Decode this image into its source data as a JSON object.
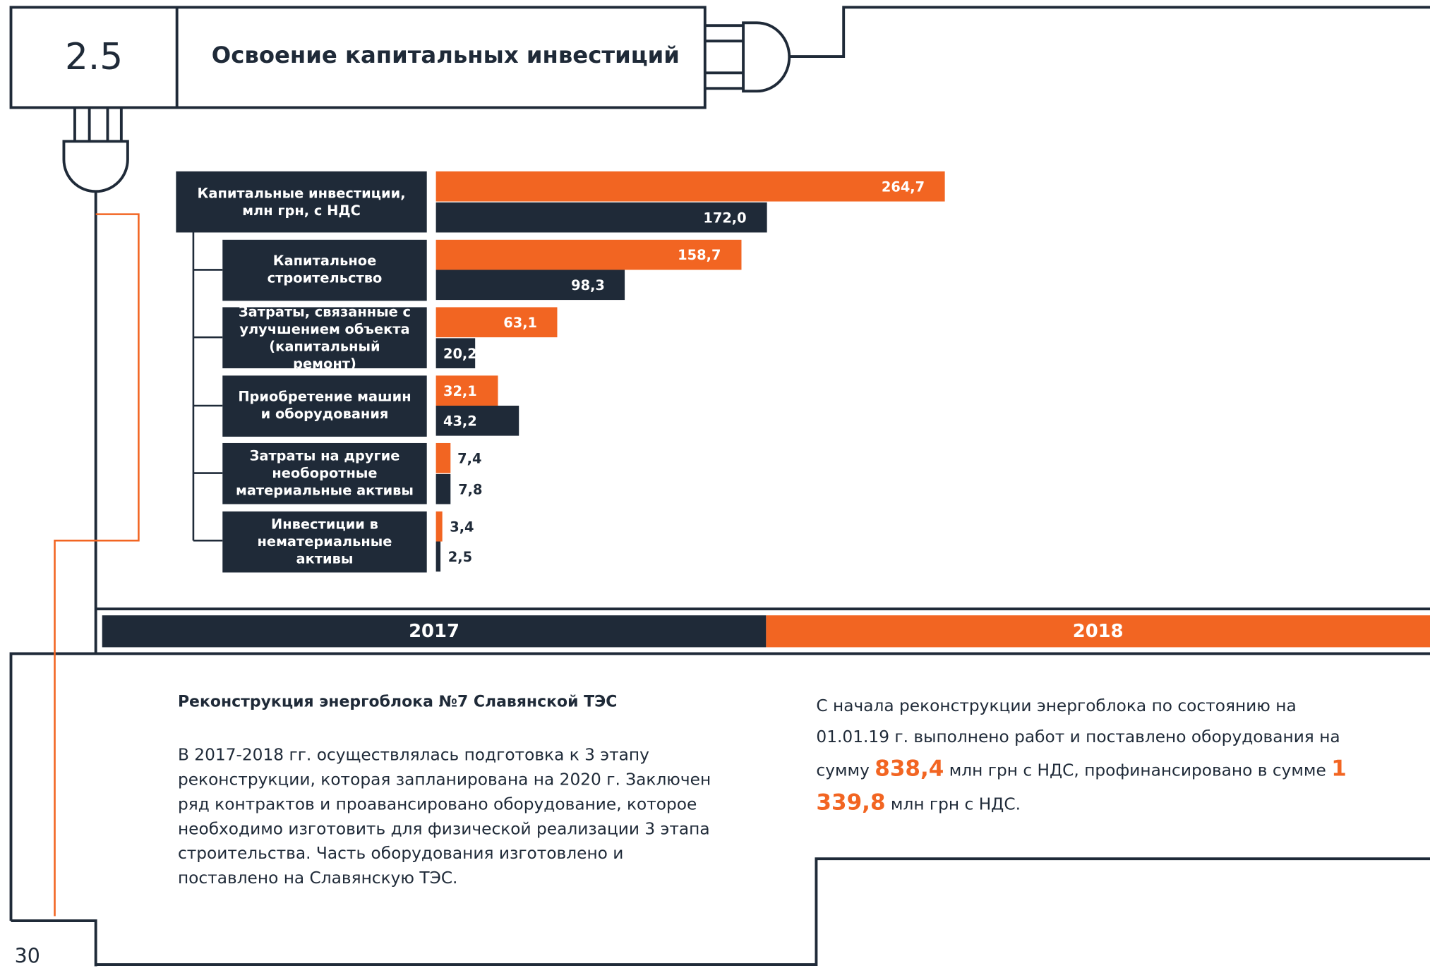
{
  "header": {
    "number": "2.5",
    "title": "Освоение капитальных инвестиций"
  },
  "chart_data": {
    "type": "bar",
    "orientation": "horizontal",
    "categories": [
      "Капитальные инвестиции, млн грн, с НДС",
      "Капитальное строительство",
      "Затраты, связанные с улучшением объекта (капитальный ремонт)",
      "Приобретение машин и оборудования",
      "Затраты на другие необоротные материальные активы",
      "Инвестиции в нематериальные активы"
    ],
    "series": [
      {
        "name": "2018",
        "color": "#f26522",
        "values": [
          264.7,
          158.7,
          63.1,
          32.1,
          7.4,
          3.4
        ],
        "value_labels": [
          "264,7",
          "158,7",
          "63,1",
          "32,1",
          "7,4",
          "3,4"
        ]
      },
      {
        "name": "2017",
        "color": "#1f2a38",
        "values": [
          172.0,
          98.3,
          20.2,
          43.2,
          7.8,
          2.5
        ],
        "value_labels": [
          "172,0",
          "98,3",
          "20,2",
          "43,2",
          "7,8",
          "2,5"
        ]
      }
    ]
  },
  "section": {
    "heading": "Реконструкция энергоблока №7 Славянской ТЭС",
    "left_text": "В 2017-2018 гг. осуществлялась подготовка к 3 этапу реконструкции, которая запланирована на 2020 г. Заключен ряд контрактов и проавансировано оборудование, которое необходимо изготовить для физической реализации 3 этапа строительства. Часть оборудования изготовлено и поставлено на Славянскую ТЭС.",
    "right_text": [
      "С начала реконструкции энергоблока по состоянию на 01.01.19 г. выполнено работ и поставлено оборудования на сумму ",
      "838,4",
      " млн грн с НДС, профинансировано в сумме ",
      "1 339,8",
      " млн грн с НДС."
    ]
  },
  "page_number": "30"
}
